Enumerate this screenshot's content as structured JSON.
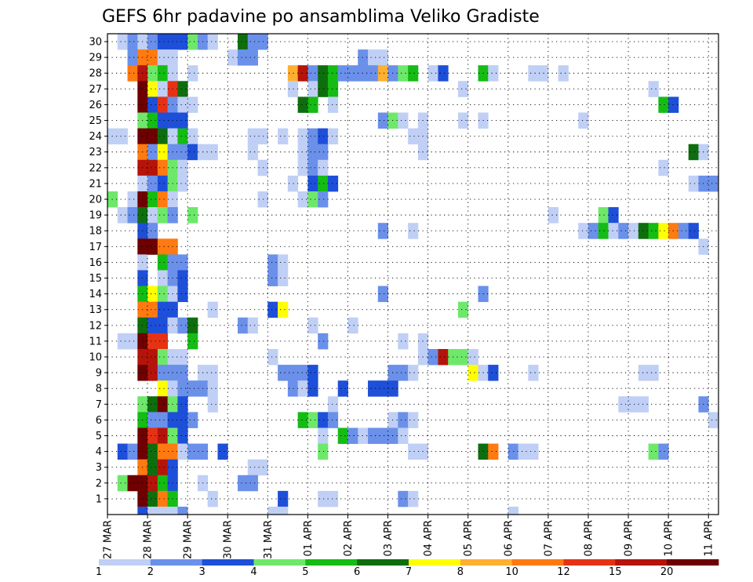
{
  "chart_data": {
    "type": "heatmap",
    "title": "GEFS 6hr padavine po ansamblima Veliko Gradiste",
    "xlabel": "",
    "ylabel": "",
    "x_ticks": [
      "27 MAR",
      "28 MAR",
      "29 MAR",
      "30 MAR",
      "31 MAR",
      "01 APR",
      "02 APR",
      "03 APR",
      "04 APR",
      "05 APR",
      "06 APR",
      "07 APR",
      "08 APR",
      "09 APR",
      "10 APR",
      "11 APR"
    ],
    "y_range": [
      0,
      30
    ],
    "y_ticks": [
      1,
      2,
      3,
      4,
      5,
      6,
      7,
      8,
      9,
      10,
      11,
      12,
      13,
      14,
      15,
      16,
      17,
      18,
      19,
      20,
      21,
      22,
      23,
      24,
      25,
      26,
      27,
      28,
      29,
      30
    ],
    "time_steps": 61,
    "steps_per_day": 4,
    "colorbar": {
      "labels": [
        "1",
        "2",
        "3",
        "4",
        "5",
        "6",
        "7",
        "8",
        "10",
        "12",
        "15",
        "20"
      ],
      "colors": [
        "#c0cff5",
        "#6a90ea",
        "#1e4fd9",
        "#6ee86a",
        "#14bc14",
        "#0e6e0e",
        "#ffff00",
        "#ffb030",
        "#ff7a10",
        "#e63214",
        "#b4140a",
        "#6e0000"
      ]
    },
    "cells": [
      [
        30,
        1,
        1
      ],
      [
        30,
        2,
        2
      ],
      [
        30,
        3,
        1
      ],
      [
        30,
        4,
        2
      ],
      [
        30,
        5,
        3
      ],
      [
        30,
        6,
        3
      ],
      [
        30,
        7,
        3
      ],
      [
        30,
        8,
        4
      ],
      [
        30,
        9,
        2
      ],
      [
        30,
        10,
        1
      ],
      [
        30,
        13,
        6
      ],
      [
        30,
        14,
        2
      ],
      [
        30,
        15,
        2
      ],
      [
        29,
        2,
        2
      ],
      [
        29,
        3,
        9
      ],
      [
        29,
        4,
        9
      ],
      [
        29,
        5,
        1
      ],
      [
        29,
        6,
        1
      ],
      [
        29,
        12,
        1
      ],
      [
        29,
        13,
        2
      ],
      [
        29,
        14,
        2
      ],
      [
        29,
        25,
        2
      ],
      [
        29,
        26,
        1
      ],
      [
        29,
        27,
        1
      ],
      [
        28,
        2,
        9
      ],
      [
        28,
        3,
        11
      ],
      [
        28,
        4,
        4
      ],
      [
        28,
        5,
        5
      ],
      [
        28,
        6,
        1
      ],
      [
        28,
        8,
        1
      ],
      [
        28,
        18,
        8
      ],
      [
        28,
        19,
        11
      ],
      [
        28,
        20,
        2
      ],
      [
        28,
        21,
        6
      ],
      [
        28,
        22,
        5
      ],
      [
        28,
        23,
        2
      ],
      [
        28,
        24,
        2
      ],
      [
        28,
        25,
        2
      ],
      [
        28,
        26,
        2
      ],
      [
        28,
        27,
        8
      ],
      [
        28,
        28,
        2
      ],
      [
        28,
        29,
        4
      ],
      [
        28,
        30,
        5
      ],
      [
        28,
        32,
        1
      ],
      [
        28,
        33,
        3
      ],
      [
        28,
        37,
        5
      ],
      [
        28,
        38,
        1
      ],
      [
        28,
        42,
        1
      ],
      [
        28,
        43,
        1
      ],
      [
        28,
        45,
        1
      ],
      [
        27,
        3,
        12
      ],
      [
        27,
        4,
        7
      ],
      [
        27,
        5,
        1
      ],
      [
        27,
        6,
        10
      ],
      [
        27,
        7,
        6
      ],
      [
        27,
        18,
        1
      ],
      [
        27,
        20,
        1
      ],
      [
        27,
        21,
        6
      ],
      [
        27,
        22,
        5
      ],
      [
        27,
        35,
        1
      ],
      [
        27,
        54,
        1
      ],
      [
        26,
        3,
        12
      ],
      [
        26,
        4,
        3
      ],
      [
        26,
        5,
        10
      ],
      [
        26,
        6,
        2
      ],
      [
        26,
        7,
        1
      ],
      [
        26,
        8,
        1
      ],
      [
        26,
        19,
        6
      ],
      [
        26,
        20,
        5
      ],
      [
        26,
        22,
        1
      ],
      [
        26,
        55,
        5
      ],
      [
        26,
        56,
        3
      ],
      [
        25,
        3,
        4
      ],
      [
        25,
        4,
        5
      ],
      [
        25,
        5,
        3
      ],
      [
        25,
        6,
        3
      ],
      [
        25,
        7,
        3
      ],
      [
        25,
        27,
        2
      ],
      [
        25,
        28,
        4
      ],
      [
        25,
        29,
        1
      ],
      [
        25,
        31,
        1
      ],
      [
        25,
        35,
        1
      ],
      [
        25,
        37,
        1
      ],
      [
        25,
        47,
        1
      ],
      [
        24,
        0,
        1
      ],
      [
        24,
        1,
        1
      ],
      [
        24,
        3,
        12
      ],
      [
        24,
        4,
        12
      ],
      [
        24,
        5,
        6
      ],
      [
        24,
        6,
        1
      ],
      [
        24,
        7,
        5
      ],
      [
        24,
        8,
        1
      ],
      [
        24,
        14,
        1
      ],
      [
        24,
        15,
        1
      ],
      [
        24,
        17,
        1
      ],
      [
        24,
        19,
        1
      ],
      [
        24,
        20,
        2
      ],
      [
        24,
        21,
        3
      ],
      [
        24,
        22,
        1
      ],
      [
        24,
        30,
        1
      ],
      [
        24,
        31,
        1
      ],
      [
        23,
        3,
        9
      ],
      [
        23,
        4,
        2
      ],
      [
        23,
        5,
        7
      ],
      [
        23,
        6,
        2
      ],
      [
        23,
        7,
        2
      ],
      [
        23,
        8,
        3
      ],
      [
        23,
        9,
        1
      ],
      [
        23,
        10,
        1
      ],
      [
        23,
        14,
        1
      ],
      [
        23,
        19,
        1
      ],
      [
        23,
        20,
        2
      ],
      [
        23,
        21,
        2
      ],
      [
        23,
        31,
        1
      ],
      [
        23,
        58,
        6
      ],
      [
        23,
        59,
        1
      ],
      [
        22,
        3,
        11
      ],
      [
        22,
        4,
        11
      ],
      [
        22,
        5,
        9
      ],
      [
        22,
        6,
        4
      ],
      [
        22,
        7,
        1
      ],
      [
        22,
        15,
        1
      ],
      [
        22,
        19,
        1
      ],
      [
        22,
        20,
        2
      ],
      [
        22,
        21,
        1
      ],
      [
        22,
        55,
        1
      ],
      [
        21,
        3,
        1
      ],
      [
        21,
        4,
        2
      ],
      [
        21,
        5,
        3
      ],
      [
        21,
        6,
        4
      ],
      [
        21,
        7,
        1
      ],
      [
        21,
        18,
        1
      ],
      [
        21,
        20,
        3
      ],
      [
        21,
        21,
        5
      ],
      [
        21,
        22,
        3
      ],
      [
        21,
        58,
        1
      ],
      [
        21,
        59,
        2
      ],
      [
        21,
        60,
        2
      ],
      [
        20,
        0,
        4
      ],
      [
        20,
        2,
        1
      ],
      [
        20,
        3,
        12
      ],
      [
        20,
        4,
        5
      ],
      [
        20,
        5,
        9
      ],
      [
        20,
        6,
        1
      ],
      [
        20,
        15,
        1
      ],
      [
        20,
        19,
        1
      ],
      [
        20,
        20,
        4
      ],
      [
        20,
        21,
        2
      ],
      [
        19,
        1,
        1
      ],
      [
        19,
        2,
        2
      ],
      [
        19,
        3,
        6
      ],
      [
        19,
        4,
        1
      ],
      [
        19,
        5,
        4
      ],
      [
        19,
        6,
        2
      ],
      [
        19,
        8,
        4
      ],
      [
        19,
        44,
        1
      ],
      [
        19,
        49,
        4
      ],
      [
        19,
        50,
        3
      ],
      [
        18,
        3,
        3
      ],
      [
        18,
        4,
        2
      ],
      [
        18,
        27,
        2
      ],
      [
        18,
        30,
        1
      ],
      [
        18,
        47,
        1
      ],
      [
        18,
        48,
        2
      ],
      [
        18,
        49,
        5
      ],
      [
        18,
        50,
        1
      ],
      [
        18,
        51,
        2
      ],
      [
        18,
        52,
        1
      ],
      [
        18,
        53,
        6
      ],
      [
        18,
        54,
        5
      ],
      [
        18,
        55,
        7
      ],
      [
        18,
        56,
        9
      ],
      [
        18,
        57,
        2
      ],
      [
        18,
        58,
        3
      ],
      [
        17,
        3,
        12
      ],
      [
        17,
        4,
        12
      ],
      [
        17,
        5,
        9
      ],
      [
        17,
        6,
        9
      ],
      [
        17,
        59,
        1
      ],
      [
        16,
        3,
        1
      ],
      [
        16,
        5,
        5
      ],
      [
        16,
        6,
        2
      ],
      [
        16,
        7,
        2
      ],
      [
        16,
        16,
        2
      ],
      [
        16,
        17,
        1
      ],
      [
        15,
        3,
        3
      ],
      [
        15,
        5,
        1
      ],
      [
        15,
        6,
        2
      ],
      [
        15,
        7,
        3
      ],
      [
        15,
        16,
        2
      ],
      [
        15,
        17,
        1
      ],
      [
        14,
        3,
        5
      ],
      [
        14,
        4,
        7
      ],
      [
        14,
        5,
        4
      ],
      [
        14,
        6,
        1
      ],
      [
        14,
        7,
        3
      ],
      [
        14,
        27,
        2
      ],
      [
        14,
        37,
        2
      ],
      [
        13,
        3,
        9
      ],
      [
        13,
        4,
        9
      ],
      [
        13,
        5,
        3
      ],
      [
        13,
        6,
        3
      ],
      [
        13,
        10,
        1
      ],
      [
        13,
        16,
        3
      ],
      [
        13,
        17,
        7
      ],
      [
        13,
        35,
        4
      ],
      [
        12,
        3,
        6
      ],
      [
        12,
        4,
        3
      ],
      [
        12,
        5,
        3
      ],
      [
        12,
        6,
        1
      ],
      [
        12,
        7,
        2
      ],
      [
        12,
        8,
        6
      ],
      [
        12,
        13,
        2
      ],
      [
        12,
        14,
        1
      ],
      [
        12,
        20,
        1
      ],
      [
        12,
        24,
        1
      ],
      [
        11,
        1,
        1
      ],
      [
        11,
        2,
        1
      ],
      [
        11,
        3,
        12
      ],
      [
        11,
        4,
        10
      ],
      [
        11,
        5,
        10
      ],
      [
        11,
        8,
        5
      ],
      [
        11,
        21,
        2
      ],
      [
        11,
        29,
        1
      ],
      [
        11,
        31,
        1
      ],
      [
        10,
        3,
        11
      ],
      [
        10,
        4,
        11
      ],
      [
        10,
        5,
        4
      ],
      [
        10,
        6,
        1
      ],
      [
        10,
        7,
        1
      ],
      [
        10,
        16,
        1
      ],
      [
        10,
        31,
        1
      ],
      [
        10,
        32,
        2
      ],
      [
        10,
        33,
        11
      ],
      [
        10,
        34,
        4
      ],
      [
        10,
        35,
        4
      ],
      [
        10,
        36,
        1
      ],
      [
        9,
        3,
        12
      ],
      [
        9,
        4,
        11
      ],
      [
        9,
        5,
        2
      ],
      [
        9,
        6,
        2
      ],
      [
        9,
        7,
        2
      ],
      [
        9,
        9,
        1
      ],
      [
        9,
        10,
        1
      ],
      [
        9,
        17,
        2
      ],
      [
        9,
        18,
        2
      ],
      [
        9,
        19,
        2
      ],
      [
        9,
        20,
        3
      ],
      [
        9,
        28,
        2
      ],
      [
        9,
        29,
        2
      ],
      [
        9,
        30,
        1
      ],
      [
        9,
        36,
        7
      ],
      [
        9,
        37,
        1
      ],
      [
        9,
        38,
        3
      ],
      [
        9,
        42,
        1
      ],
      [
        9,
        53,
        1
      ],
      [
        9,
        54,
        1
      ],
      [
        8,
        5,
        7
      ],
      [
        8,
        6,
        1
      ],
      [
        8,
        7,
        2
      ],
      [
        8,
        8,
        2
      ],
      [
        8,
        9,
        2
      ],
      [
        8,
        10,
        1
      ],
      [
        8,
        18,
        2
      ],
      [
        8,
        19,
        1
      ],
      [
        8,
        20,
        3
      ],
      [
        8,
        23,
        3
      ],
      [
        8,
        26,
        3
      ],
      [
        8,
        27,
        3
      ],
      [
        8,
        28,
        3
      ],
      [
        7,
        3,
        4
      ],
      [
        7,
        4,
        6
      ],
      [
        7,
        5,
        12
      ],
      [
        7,
        6,
        4
      ],
      [
        7,
        7,
        3
      ],
      [
        7,
        10,
        1
      ],
      [
        7,
        22,
        1
      ],
      [
        7,
        51,
        1
      ],
      [
        7,
        52,
        1
      ],
      [
        7,
        53,
        1
      ],
      [
        7,
        59,
        2
      ],
      [
        6,
        3,
        5
      ],
      [
        6,
        4,
        2
      ],
      [
        6,
        5,
        2
      ],
      [
        6,
        6,
        3
      ],
      [
        6,
        7,
        3
      ],
      [
        6,
        8,
        2
      ],
      [
        6,
        19,
        5
      ],
      [
        6,
        20,
        4
      ],
      [
        6,
        21,
        3
      ],
      [
        6,
        22,
        2
      ],
      [
        6,
        28,
        1
      ],
      [
        6,
        29,
        2
      ],
      [
        6,
        30,
        1
      ],
      [
        6,
        60,
        1
      ],
      [
        5,
        3,
        12
      ],
      [
        5,
        4,
        10
      ],
      [
        5,
        5,
        11
      ],
      [
        5,
        6,
        4
      ],
      [
        5,
        7,
        3
      ],
      [
        5,
        21,
        1
      ],
      [
        5,
        23,
        5
      ],
      [
        5,
        24,
        2
      ],
      [
        5,
        25,
        1
      ],
      [
        5,
        26,
        2
      ],
      [
        5,
        27,
        2
      ],
      [
        5,
        28,
        2
      ],
      [
        5,
        29,
        1
      ],
      [
        4,
        1,
        3
      ],
      [
        4,
        2,
        2
      ],
      [
        4,
        3,
        12
      ],
      [
        4,
        4,
        6
      ],
      [
        4,
        5,
        9
      ],
      [
        4,
        6,
        9
      ],
      [
        4,
        7,
        1
      ],
      [
        4,
        8,
        2
      ],
      [
        4,
        9,
        2
      ],
      [
        4,
        11,
        3
      ],
      [
        4,
        21,
        4
      ],
      [
        4,
        30,
        1
      ],
      [
        4,
        31,
        1
      ],
      [
        4,
        37,
        6
      ],
      [
        4,
        38,
        9
      ],
      [
        4,
        40,
        2
      ],
      [
        4,
        41,
        1
      ],
      [
        4,
        42,
        1
      ],
      [
        4,
        54,
        4
      ],
      [
        4,
        55,
        2
      ],
      [
        3,
        3,
        9
      ],
      [
        3,
        4,
        6
      ],
      [
        3,
        5,
        11
      ],
      [
        3,
        6,
        3
      ],
      [
        3,
        14,
        1
      ],
      [
        3,
        15,
        1
      ],
      [
        2,
        1,
        4
      ],
      [
        2,
        2,
        12
      ],
      [
        2,
        3,
        12
      ],
      [
        2,
        4,
        11
      ],
      [
        2,
        5,
        5
      ],
      [
        2,
        6,
        3
      ],
      [
        2,
        9,
        1
      ],
      [
        2,
        13,
        2
      ],
      [
        2,
        14,
        2
      ],
      [
        1,
        3,
        12
      ],
      [
        1,
        4,
        6
      ],
      [
        1,
        5,
        9
      ],
      [
        1,
        6,
        5
      ],
      [
        1,
        10,
        1
      ],
      [
        1,
        17,
        3
      ],
      [
        1,
        21,
        1
      ],
      [
        1,
        22,
        1
      ],
      [
        1,
        29,
        2
      ],
      [
        1,
        30,
        1
      ],
      [
        0,
        3,
        3
      ],
      [
        0,
        4,
        1
      ],
      [
        0,
        5,
        1
      ],
      [
        0,
        6,
        1
      ],
      [
        0,
        7,
        2
      ],
      [
        0,
        16,
        1
      ],
      [
        0,
        17,
        1
      ],
      [
        0,
        40,
        1
      ]
    ]
  }
}
